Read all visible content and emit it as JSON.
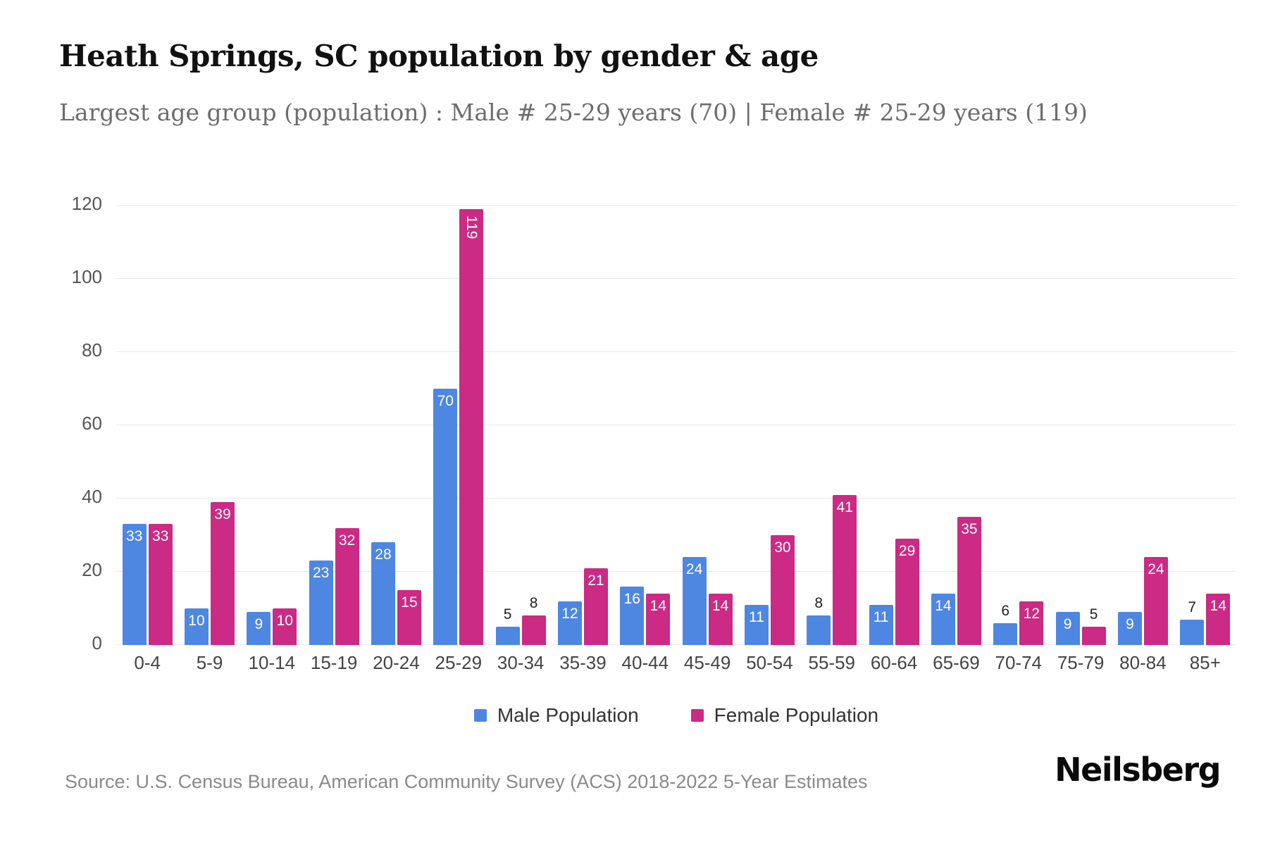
{
  "title": "Heath Springs, SC population by gender & age",
  "subtitle": "Largest age group (population) : Male # 25-29 years (70) | Female # 25-29 years (119)",
  "source": "Source: U.S. Census Bureau, American Community Survey (ACS) 2018-2022 5-Year Estimates",
  "brand": "Neilsberg",
  "colors": {
    "male": "#4e87e1",
    "female": "#cb2a85"
  },
  "legend": [
    {
      "label": "Male Population",
      "color": "#4e87e1"
    },
    {
      "label": "Female Population",
      "color": "#cb2a85"
    }
  ],
  "chart_data": {
    "type": "bar",
    "title": "Heath Springs, SC population by gender & age",
    "xlabel": "",
    "ylabel": "",
    "ylim": [
      0,
      120
    ],
    "yticks": [
      0,
      20,
      40,
      60,
      80,
      100,
      120
    ],
    "grid": true,
    "legend_position": "bottom",
    "categories": [
      "0-4",
      "5-9",
      "10-14",
      "15-19",
      "20-24",
      "25-29",
      "30-34",
      "35-39",
      "40-44",
      "45-49",
      "50-54",
      "55-59",
      "60-64",
      "65-69",
      "70-74",
      "75-79",
      "80-84",
      "85+"
    ],
    "series": [
      {
        "name": "Male Population",
        "color": "#4e87e1",
        "values": [
          33,
          10,
          9,
          23,
          28,
          70,
          5,
          12,
          16,
          24,
          11,
          8,
          11,
          14,
          6,
          9,
          9,
          7
        ]
      },
      {
        "name": "Female Population",
        "color": "#cb2a85",
        "values": [
          33,
          39,
          10,
          32,
          15,
          119,
          8,
          21,
          14,
          14,
          30,
          41,
          29,
          35,
          12,
          5,
          24,
          14
        ]
      }
    ]
  }
}
